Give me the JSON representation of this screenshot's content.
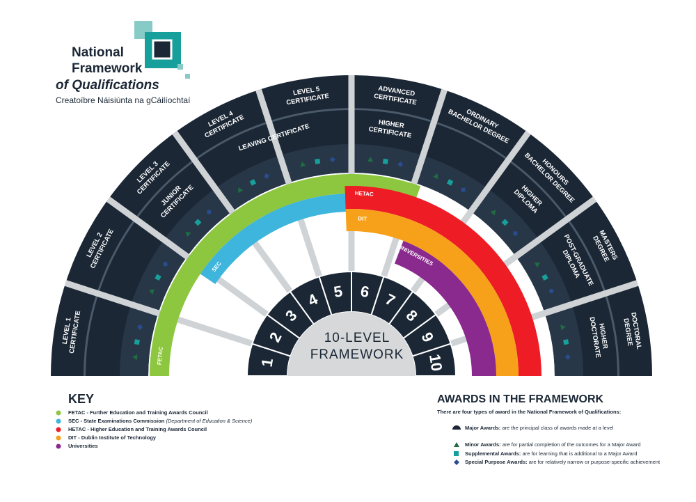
{
  "logo": {
    "line1": "National",
    "line2": "Framework",
    "line3": "of Qualifications",
    "irish": "Creatoíbre Náisiúnta na gCáilíochtaí"
  },
  "center": {
    "line1": "10-LEVEL",
    "line2": "FRAMEWORK"
  },
  "levels": [
    1,
    2,
    3,
    4,
    5,
    6,
    7,
    8,
    9,
    10
  ],
  "outer_awards": [
    [
      "LEVEL 1",
      "CERTIFICATE"
    ],
    [
      "LEVEL 2",
      "CERTIFICATE"
    ],
    [
      "LEVEL 3",
      "CERTIFICATE"
    ],
    [
      "LEVEL 4",
      "CERTIFICATE"
    ],
    [
      "LEVEL 5",
      "CERTIFICATE"
    ],
    [
      "ADVANCED",
      "CERTIFICATE"
    ],
    [
      "ORDINARY",
      "BACHELOR DEGREE"
    ],
    [
      "HONOURS",
      "BACHELOR DEGREE"
    ],
    [
      "MASTERS",
      "DEGREE"
    ],
    [
      "DOCTORAL",
      "DEGREE"
    ]
  ],
  "inner_awards": [
    [
      "JUNIOR",
      "CERTIFICATE"
    ],
    [
      "LEAVING CERTIFICATE"
    ],
    [
      "HIGHER",
      "CERTIFICATE"
    ],
    [
      "HIGHER",
      "DIPLOMA"
    ],
    [
      "POST-GRADUATE",
      "DIPLOMA"
    ],
    [
      "HIGHER",
      "DOCTORATE"
    ]
  ],
  "bodies": [
    {
      "label": "FETAC",
      "color": "#8dc63f"
    },
    {
      "label": "SEC",
      "color": "#3db5dc"
    },
    {
      "label": "HETAC",
      "color": "#ee1c25"
    },
    {
      "label": "DIT",
      "color": "#f7a11a"
    },
    {
      "label": "UNIVERSITIES",
      "color": "#8b2a8e"
    }
  ],
  "key": {
    "title": "KEY",
    "items": [
      {
        "name": "FETAC - Further Education and Training Awards Council",
        "color": "#8dc63f"
      },
      {
        "name": "SEC - State Examinations Commission",
        "note": "(Department of Education & Science)",
        "color": "#3db5dc"
      },
      {
        "name": "HETAC - Higher Education and Training Awards Council",
        "color": "#ee1c25"
      },
      {
        "name": "DIT - Dublin Institute of Technology",
        "color": "#f7a11a"
      },
      {
        "name": "Universities",
        "color": "#8b2a8e"
      }
    ]
  },
  "awards": {
    "title": "AWARDS IN THE FRAMEWORK",
    "intro": "There are four types of award in the National Framework of Qualifications:",
    "items": [
      {
        "term": "Major Awards:",
        "desc": "are the principal class of awards made at a level"
      },
      {
        "term": "Minor Awards:",
        "desc": "are for partial completion of the outcomes for a Major Award"
      },
      {
        "term": "Supplemental Awards:",
        "desc": "are for learning that is additional to a Major Award"
      },
      {
        "term": "Special Purpose Awards:",
        "desc": "are for relatively narrow or purpose-specific achievement"
      }
    ]
  }
}
